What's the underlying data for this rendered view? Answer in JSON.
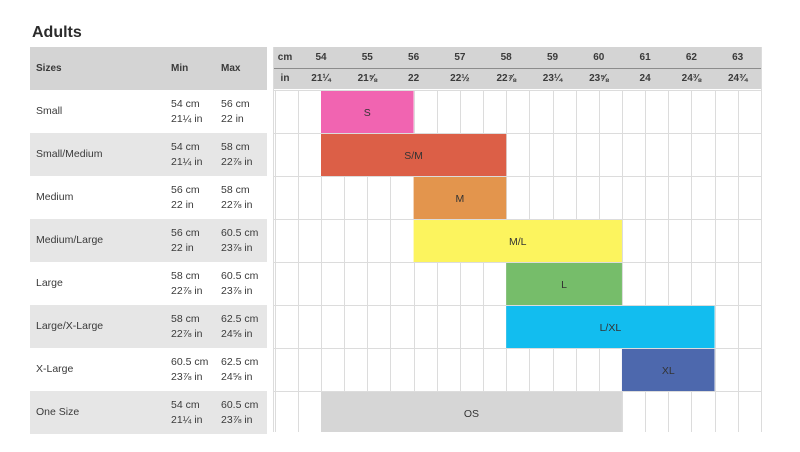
{
  "title": "Adults",
  "table": {
    "headers": {
      "sizes": "Sizes",
      "min": "Min",
      "max": "Max"
    },
    "rows": [
      {
        "size": "Small",
        "min_cm": "54 cm",
        "min_in": "21¼ in",
        "max_cm": "56 cm",
        "max_in": "22 in"
      },
      {
        "size": "Small/Medium",
        "min_cm": "54 cm",
        "min_in": "21¼ in",
        "max_cm": "58 cm",
        "max_in": "22⅞ in"
      },
      {
        "size": "Medium",
        "min_cm": "56 cm",
        "min_in": "22 in",
        "max_cm": "58 cm",
        "max_in": "22⅞ in"
      },
      {
        "size": "Medium/Large",
        "min_cm": "56 cm",
        "min_in": "22 in",
        "max_cm": "60.5 cm",
        "max_in": "23⅞ in"
      },
      {
        "size": "Large",
        "min_cm": "58 cm",
        "min_in": "22⅞ in",
        "max_cm": "60.5 cm",
        "max_in": "23⅞ in"
      },
      {
        "size": "Large/X-Large",
        "min_cm": "58 cm",
        "min_in": "22⅞ in",
        "max_cm": "62.5 cm",
        "max_in": "24⅝ in"
      },
      {
        "size": "X-Large",
        "min_cm": "60.5 cm",
        "min_in": "23⅞ in",
        "max_cm": "62.5 cm",
        "max_in": "24⅝ in"
      },
      {
        "size": "One Size",
        "min_cm": "54 cm",
        "min_in": "21¼ in",
        "max_cm": "60.5 cm",
        "max_in": "23⅞ in"
      }
    ]
  },
  "chart_data": {
    "type": "bar",
    "orientation": "horizontal-range",
    "axis": {
      "unit_cm": "cm",
      "unit_in": "in",
      "ticks_cm": [
        54,
        55,
        56,
        57,
        58,
        59,
        60,
        61,
        62,
        63
      ],
      "tick_labels_cm": [
        "54",
        "55",
        "56",
        "57",
        "58",
        "59",
        "60",
        "61",
        "62",
        "63"
      ],
      "tick_labels_in": [
        "21¼",
        "21⅝",
        "22",
        "22½",
        "22⅞",
        "23¼",
        "23⅝",
        "24",
        "24⅜",
        "24¾"
      ],
      "range_cm": [
        53,
        63.5
      ],
      "grid": true
    },
    "bars": [
      {
        "label": "S",
        "start": 54,
        "end": 56,
        "color": "#f164b1"
      },
      {
        "label": "S/M",
        "start": 54,
        "end": 58,
        "color": "#dc5f47"
      },
      {
        "label": "M",
        "start": 56,
        "end": 58,
        "color": "#e3954d"
      },
      {
        "label": "M/L",
        "start": 56,
        "end": 60.5,
        "color": "#fcf45e"
      },
      {
        "label": "L",
        "start": 58,
        "end": 60.5,
        "color": "#76bd6a"
      },
      {
        "label": "L/XL",
        "start": 58,
        "end": 62.5,
        "color": "#12bdef"
      },
      {
        "label": "XL",
        "start": 60.5,
        "end": 62.5,
        "color": "#4d68ad"
      },
      {
        "label": "OS",
        "start": 54,
        "end": 60.5,
        "color": "#d6d6d6"
      }
    ]
  }
}
